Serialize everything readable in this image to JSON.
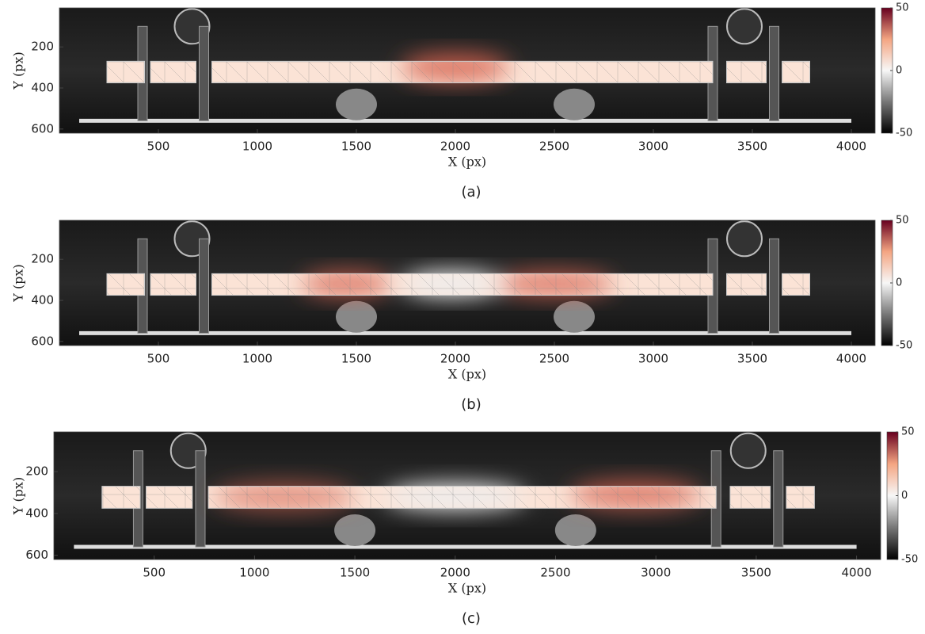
{
  "chart_data": [
    {
      "type": "image",
      "caption": "(a)",
      "xlabel": "X (px)",
      "ylabel": "Y (px)",
      "xlim": [
        0,
        4120
      ],
      "ylim": [
        620,
        10
      ],
      "xticks": [
        500,
        1000,
        1500,
        2000,
        2500,
        3000,
        3500,
        4000
      ],
      "yticks": [
        200,
        400,
        600
      ],
      "clim": [
        -50,
        50
      ],
      "cticks": [
        -50,
        0,
        50
      ]
    },
    {
      "type": "image",
      "caption": "(b)",
      "xlabel": "X (px)",
      "ylabel": "Y (px)",
      "xlim": [
        0,
        4120
      ],
      "ylim": [
        620,
        10
      ],
      "xticks": [
        500,
        1000,
        1500,
        2000,
        2500,
        3000,
        3500,
        4000
      ],
      "yticks": [
        200,
        400,
        600
      ],
      "clim": [
        -50,
        50
      ],
      "cticks": [
        -50,
        0,
        50
      ]
    },
    {
      "type": "image",
      "caption": "(c)",
      "xlabel": "X (px)",
      "ylabel": "Y (px)",
      "xlim": [
        0,
        4120
      ],
      "ylim": [
        620,
        10
      ],
      "xticks": [
        500,
        1000,
        1500,
        2000,
        2500,
        3000,
        3500,
        4000
      ],
      "yticks": [
        200,
        400,
        600
      ],
      "clim": [
        -50,
        50
      ],
      "cticks": [
        -50,
        0,
        50
      ]
    }
  ]
}
